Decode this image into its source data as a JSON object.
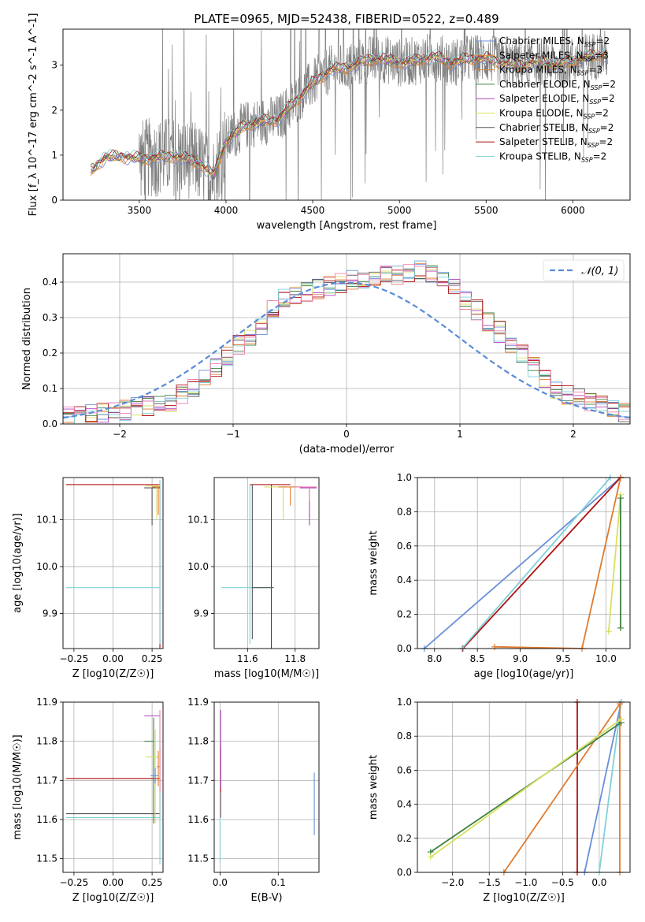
{
  "title": "PLATE=0965, MJD=52438, FIBERID=0522, z=0.489",
  "colors": {
    "chabrier_miles": "#6a8fd8",
    "salpeter_miles": "#e07b30",
    "kroupa_miles": "#e08a40",
    "chabrier_elodie": "#3d8040",
    "salpeter_elodie": "#b040c0",
    "kroupa_elodie": "#d8e060",
    "chabrier_stelib": "#555555",
    "salpeter_stelib": "#b01010",
    "kroupa_stelib": "#80d0d8",
    "pink": "#f080b0",
    "data": "#808080",
    "gaussian": "#5b8bd8"
  },
  "chart_data": [
    {
      "id": "spectrum",
      "type": "line",
      "title": "PLATE=0965, MJD=52438, FIBERID=0522, z=0.489",
      "xlabel": "wavelength [Angstrom, rest frame]",
      "ylabel": "Flux [f_λ 10^-17 erg cm^-2 s^-1 A^-1]",
      "xlim": [
        3060,
        6330
      ],
      "ylim": [
        0,
        3.8
      ],
      "xticks": [
        "3500",
        "4000",
        "4500",
        "5000",
        "5500",
        "6000"
      ],
      "yticks": [
        "0",
        "1",
        "2",
        "3"
      ],
      "legend_position": "top-right",
      "legend": [
        {
          "label": "Chabrier MILES, N",
          "sub": "SSP",
          "tail": "=2",
          "color_key": "chabrier_miles"
        },
        {
          "label": "Salpeter MILES, N",
          "sub": "SSP",
          "tail": "=3",
          "color_key": "salpeter_miles"
        },
        {
          "label": "Kroupa MILES, N",
          "sub": "SSP",
          "tail": "=3",
          "color_key": "kroupa_miles"
        },
        {
          "label": "Chabrier ELODIE, N",
          "sub": "SSP",
          "tail": "=2",
          "color_key": "chabrier_elodie"
        },
        {
          "label": "Salpeter ELODIE, N",
          "sub": "SSP",
          "tail": "=2",
          "color_key": "salpeter_elodie"
        },
        {
          "label": "Kroupa ELODIE, N",
          "sub": "SSP",
          "tail": "=2",
          "color_key": "kroupa_elodie"
        },
        {
          "label": "Chabrier STELIB, N",
          "sub": "SSP",
          "tail": "=2",
          "color_key": "chabrier_stelib"
        },
        {
          "label": "Salpeter STELIB, N",
          "sub": "SSP",
          "tail": "=2",
          "color_key": "salpeter_stelib"
        },
        {
          "label": "Kroupa STELIB, N",
          "sub": "SSP",
          "tail": "=2",
          "color_key": "kroupa_stelib"
        }
      ],
      "model_continuum": [
        [
          3220,
          0.65
        ],
        [
          3300,
          0.95
        ],
        [
          3400,
          0.98
        ],
        [
          3500,
          0.92
        ],
        [
          3600,
          0.95
        ],
        [
          3700,
          0.98
        ],
        [
          3800,
          0.9
        ],
        [
          3850,
          0.8
        ],
        [
          3930,
          0.55
        ],
        [
          3970,
          1.0
        ],
        [
          4000,
          1.3
        ],
        [
          4100,
          1.65
        ],
        [
          4200,
          1.75
        ],
        [
          4300,
          1.8
        ],
        [
          4400,
          2.2
        ],
        [
          4500,
          2.6
        ],
        [
          4600,
          2.9
        ],
        [
          4700,
          2.95
        ],
        [
          4800,
          3.1
        ],
        [
          4900,
          3.15
        ],
        [
          5000,
          3.05
        ],
        [
          5100,
          3.1
        ],
        [
          5200,
          3.2
        ],
        [
          5300,
          3.05
        ],
        [
          5400,
          3.15
        ],
        [
          5500,
          3.15
        ],
        [
          5600,
          3.05
        ],
        [
          5700,
          3.0
        ],
        [
          5800,
          3.1
        ],
        [
          5900,
          3.0
        ],
        [
          6000,
          3.1
        ],
        [
          6100,
          3.2
        ],
        [
          6200,
          3.25
        ]
      ]
    },
    {
      "id": "residuals",
      "type": "histogram",
      "xlabel": "(data-model)/error",
      "ylabel": "Normed distribution",
      "xlim": [
        -2.5,
        2.5
      ],
      "ylim": [
        0,
        0.48
      ],
      "xticks": [
        "−2",
        "−1",
        "0",
        "1",
        "2"
      ],
      "yticks": [
        "0.0",
        "0.1",
        "0.2",
        "0.3",
        "0.4"
      ],
      "legend_position": "top-right",
      "legend": [
        {
          "label": "𝒩(0, 1)",
          "color_key": "gaussian"
        }
      ],
      "bin_edges_start": -2.5,
      "bin_width": 0.1,
      "base_counts": [
        0.02,
        0.02,
        0.03,
        0.03,
        0.04,
        0.04,
        0.05,
        0.05,
        0.06,
        0.06,
        0.08,
        0.1,
        0.13,
        0.16,
        0.19,
        0.22,
        0.25,
        0.28,
        0.32,
        0.35,
        0.36,
        0.37,
        0.38,
        0.39,
        0.4,
        0.41,
        0.41,
        0.41,
        0.42,
        0.42,
        0.43,
        0.43,
        0.42,
        0.4,
        0.38,
        0.35,
        0.32,
        0.29,
        0.26,
        0.23,
        0.2,
        0.16,
        0.13,
        0.1,
        0.08,
        0.07,
        0.06,
        0.05,
        0.04,
        0.03
      ],
      "series": [
        {
          "color_key": "chabrier_miles"
        },
        {
          "color_key": "salpeter_miles"
        },
        {
          "color_key": "chabrier_elodie"
        },
        {
          "color_key": "salpeter_elodie"
        },
        {
          "color_key": "kroupa_elodie"
        },
        {
          "color_key": "chabrier_stelib"
        },
        {
          "color_key": "salpeter_stelib"
        },
        {
          "color_key": "kroupa_stelib"
        },
        {
          "color_key": "pink"
        }
      ]
    },
    {
      "id": "z-age",
      "type": "scatter",
      "xlabel": "Z [log10(Z/Z☉)]",
      "ylabel": "age [log10(age/yr)]",
      "xlim": [
        -0.32,
        0.32
      ],
      "ylim": [
        9.825,
        10.19
      ],
      "xticks": [
        "−0.25",
        "0.00",
        "0.25"
      ],
      "yticks": [
        "9.9",
        "10.0",
        "10.1"
      ],
      "points": [
        {
          "x": 0.3,
          "y": 10.175,
          "xerr": [
            0.6,
            0.0
          ],
          "yerr": [
            0.35,
            0.0
          ],
          "color_key": "salpeter_stelib"
        },
        {
          "x": 0.3,
          "y": 9.955,
          "xerr": [
            0.6,
            0.0
          ],
          "yerr": [
            0.12,
            0.23
          ],
          "color_key": "kroupa_stelib"
        },
        {
          "x": 0.25,
          "y": 10.168,
          "xerr": [
            0.05,
            0.05
          ],
          "yerr": [
            0.08,
            0.0
          ],
          "color_key": "chabrier_stelib"
        },
        {
          "x": 0.28,
          "y": 10.172,
          "xerr": [
            0.07,
            0.02
          ],
          "yerr": [
            0.07,
            0.0
          ],
          "color_key": "kroupa_elodie"
        },
        {
          "x": 0.29,
          "y": 10.17,
          "xerr": [
            0.04,
            0.01
          ],
          "yerr": [
            0.06,
            0.0
          ],
          "color_key": "salpeter_miles"
        }
      ]
    },
    {
      "id": "mass-age",
      "type": "scatter",
      "xlabel": "mass [log10(M/M☉)]",
      "ylabel": "",
      "xlim": [
        11.46,
        11.9
      ],
      "ylim": [
        9.825,
        10.19
      ],
      "xticks": [
        "11.6",
        "11.8"
      ],
      "yticks": [
        "9.9",
        "10.0",
        "10.1"
      ],
      "points": [
        {
          "x": 11.7,
          "y": 10.175,
          "xerr": [
            0.09,
            0.08
          ],
          "yerr": [
            0.35,
            0.0
          ],
          "color_key": "salpeter_stelib"
        },
        {
          "x": 11.61,
          "y": 9.955,
          "xerr": [
            0.12,
            0.09
          ],
          "yerr": [
            0.12,
            0.22
          ],
          "color_key": "kroupa_stelib"
        },
        {
          "x": 11.62,
          "y": 9.955,
          "xerr": [
            0.0,
            0.09
          ],
          "yerr": [
            0.11,
            0.22
          ],
          "color_key": "chabrier_stelib"
        },
        {
          "x": 11.75,
          "y": 10.17,
          "xerr": [
            0.08,
            0.06
          ],
          "yerr": [
            0.07,
            0.0
          ],
          "color_key": "kroupa_elodie"
        },
        {
          "x": 11.78,
          "y": 10.17,
          "xerr": [
            0.05,
            0.05
          ],
          "yerr": [
            0.04,
            0.0
          ],
          "color_key": "salpeter_miles"
        },
        {
          "x": 11.86,
          "y": 10.168,
          "xerr": [
            0.04,
            0.03
          ],
          "yerr": [
            0.08,
            0.0
          ],
          "color_key": "salpeter_elodie"
        },
        {
          "x": 11.86,
          "y": 10.17,
          "xerr": [
            0.06,
            0.03
          ],
          "yerr": [
            0.03,
            0.0
          ],
          "color_key": "pink"
        }
      ]
    },
    {
      "id": "age-weight",
      "type": "line",
      "xlabel": "age [log10(age/yr)]",
      "ylabel": "mass weight",
      "xlim": [
        7.8,
        10.28
      ],
      "ylim": [
        0,
        1.0
      ],
      "xticks": [
        "8.0",
        "8.5",
        "9.0",
        "9.5",
        "10.0"
      ],
      "yticks": [
        "0.0",
        "0.2",
        "0.4",
        "0.6",
        "0.8",
        "1.0"
      ],
      "series": [
        {
          "color_key": "chabrier_miles",
          "x": [
            7.88,
            10.17
          ],
          "y": [
            0.0,
            1.0
          ]
        },
        {
          "color_key": "salpeter_stelib",
          "x": [
            8.33,
            10.17
          ],
          "y": [
            0.0,
            1.0
          ]
        },
        {
          "color_key": "kroupa_stelib",
          "x": [
            8.32,
            10.05
          ],
          "y": [
            0.0,
            1.0
          ]
        },
        {
          "color_key": "salpeter_miles",
          "x": [
            8.7,
            9.72,
            10.17
          ],
          "y": [
            0.01,
            0.0,
            1.0
          ]
        },
        {
          "color_key": "kroupa_elodie",
          "x": [
            10.03,
            10.17
          ],
          "y": [
            0.1,
            0.9
          ]
        },
        {
          "color_key": "chabrier_elodie",
          "x": [
            10.17,
            10.17
          ],
          "y": [
            0.12,
            0.88
          ]
        }
      ]
    },
    {
      "id": "z-mass",
      "type": "scatter",
      "xlabel": "Z [log10(Z/Z☉)]",
      "ylabel": "mass [log10(M/M☉)]",
      "xlim": [
        -0.32,
        0.32
      ],
      "ylim": [
        11.465,
        11.9
      ],
      "xticks": [
        "−0.25",
        "0.00",
        "0.25"
      ],
      "yticks": [
        "11.5",
        "11.6",
        "11.7",
        "11.8",
        "11.9"
      ],
      "points": [
        {
          "x": 0.3,
          "y": 11.705,
          "xerr": [
            0.6,
            0.0
          ],
          "yerr": [
            0.1,
            0.08
          ],
          "color_key": "salpeter_stelib"
        },
        {
          "x": 0.3,
          "y": 11.615,
          "xerr": [
            0.6,
            0.0
          ],
          "yerr": [
            0.0,
            0.0
          ],
          "color_key": "chabrier_stelib"
        },
        {
          "x": 0.3,
          "y": 11.605,
          "xerr": [
            0.6,
            0.0
          ],
          "yerr": [
            0.12,
            0.07
          ],
          "color_key": "kroupa_stelib"
        },
        {
          "x": 0.28,
          "y": 11.865,
          "xerr": [
            0.08,
            0.02
          ],
          "yerr": [
            0.0,
            0.0
          ],
          "color_key": "salpeter_elodie"
        },
        {
          "x": 0.26,
          "y": 11.8,
          "xerr": [
            0.06,
            0.0
          ],
          "yerr": [
            0.21,
            0.06
          ],
          "color_key": "chabrier_elodie"
        },
        {
          "x": 0.27,
          "y": 11.76,
          "xerr": [
            0.06,
            0.02
          ],
          "yerr": [
            0.17,
            0.07
          ],
          "color_key": "kroupa_elodie"
        },
        {
          "x": 0.29,
          "y": 11.735,
          "xerr": [
            0.01,
            0.01
          ],
          "yerr": [
            0.05,
            0.04
          ],
          "color_key": "salpeter_miles"
        },
        {
          "x": 0.27,
          "y": 11.712,
          "xerr": [
            0.03,
            0.02
          ],
          "yerr": [
            0.02,
            0.02
          ],
          "color_key": "chabrier_miles"
        },
        {
          "x": 0.3,
          "y": 11.79,
          "xerr": [
            0.0,
            0.0
          ],
          "yerr": [
            0.12,
            0.09
          ],
          "color_key": "pink"
        }
      ]
    },
    {
      "id": "ebv-mass",
      "type": "scatter",
      "xlabel": "E(B-V)",
      "ylabel": "",
      "xlim": [
        -0.01,
        0.17
      ],
      "ylim": [
        11.465,
        11.9
      ],
      "xticks": [
        "0.0",
        "0.1"
      ],
      "yticks": [
        "11.5",
        "11.6",
        "11.7",
        "11.8",
        "11.9"
      ],
      "points": [
        {
          "x": 0.001,
          "y": 11.705,
          "yerr": [
            0.1,
            0.08
          ],
          "color_key": "salpeter_stelib"
        },
        {
          "x": 0.001,
          "y": 11.8,
          "yerr": [
            0.12,
            0.08
          ],
          "color_key": "salpeter_elodie"
        },
        {
          "x": 0.0,
          "y": 11.61,
          "yerr": [
            0.12,
            0.06
          ],
          "color_key": "kroupa_stelib"
        },
        {
          "x": 0.162,
          "y": 11.64,
          "yerr": [
            0.08,
            0.08
          ],
          "color_key": "chabrier_miles"
        }
      ]
    },
    {
      "id": "z-weight",
      "type": "line",
      "xlabel": "Z [log10(Z/Z☉)]",
      "ylabel": "mass weight",
      "xlim": [
        -2.48,
        0.42
      ],
      "ylim": [
        0,
        1.0
      ],
      "xticks": [
        "−2.0",
        "−1.5",
        "−1.0",
        "−0.5",
        "0.0"
      ],
      "yticks": [
        "0.0",
        "0.2",
        "0.4",
        "0.6",
        "0.8",
        "1.0"
      ],
      "series": [
        {
          "color_key": "salpeter_stelib",
          "x": [
            -0.3,
            -0.3
          ],
          "y": [
            0.0,
            1.0
          ]
        },
        {
          "color_key": "chabrier_miles",
          "x": [
            -0.2,
            0.3
          ],
          "y": [
            0.0,
            1.0
          ]
        },
        {
          "color_key": "kroupa_stelib",
          "x": [
            0.0,
            0.3
          ],
          "y": [
            0.0,
            1.0
          ]
        },
        {
          "color_key": "salpeter_miles",
          "x": [
            -1.3,
            0.28,
            0.28
          ],
          "y": [
            0.0,
            0.99,
            0.0
          ]
        },
        {
          "color_key": "chabrier_elodie",
          "x": [
            -2.3,
            0.3
          ],
          "y": [
            0.12,
            0.88
          ]
        },
        {
          "color_key": "kroupa_elodie",
          "x": [
            -2.3,
            0.3
          ],
          "y": [
            0.09,
            0.9
          ]
        }
      ]
    }
  ]
}
